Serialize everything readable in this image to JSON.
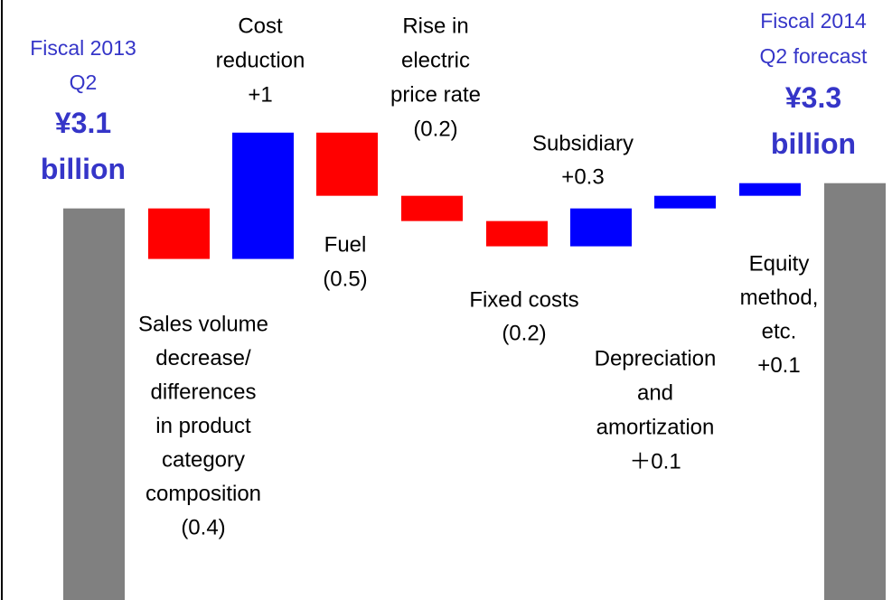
{
  "chart_data": {
    "type": "waterfall",
    "categories": [
      [
        "Fiscal 2013",
        "Q2"
      ],
      [
        "Sales volume",
        "decrease/",
        "differences",
        "in product",
        "category",
        "composition"
      ],
      [
        "Cost",
        "reduction"
      ],
      [
        "Fuel"
      ],
      [
        "Rise in",
        "electric",
        "price rate"
      ],
      [
        "Fixed costs"
      ],
      [
        "Subsidiary"
      ],
      [
        "Depreciation",
        "and",
        "amortization"
      ],
      [
        "Equity",
        "method,",
        "etc."
      ],
      [
        "Fiscal 2014",
        "Q2 forecast"
      ]
    ],
    "values": [
      3.1,
      -0.4,
      1,
      -0.5,
      -0.2,
      -0.2,
      0.3,
      0.1,
      0.1,
      3.3
    ],
    "value_labels": [
      "¥3.1 billion",
      "(0.4)",
      "+1",
      "(0.5)",
      "(0.2)",
      "(0.2)",
      "+0.3",
      "＋0.1",
      "+0.1",
      "¥3.3 billion"
    ],
    "measure": [
      "total",
      "relative",
      "relative",
      "relative",
      "relative",
      "relative",
      "relative",
      "relative",
      "relative",
      "total"
    ],
    "colors": {
      "increase": "#0000ff",
      "decrease": "#ff0000",
      "total": "#808080"
    },
    "ylim": [
      0,
      4.75
    ]
  }
}
